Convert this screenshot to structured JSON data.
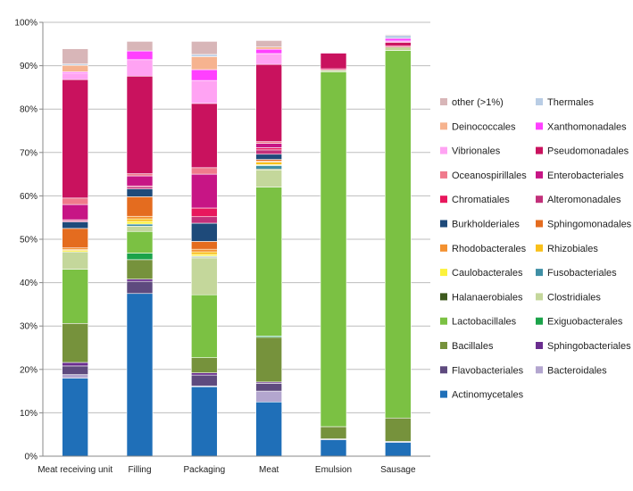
{
  "chart_data": {
    "type": "bar",
    "stacked": true,
    "categories": [
      "Meat receiving unit",
      "Filling",
      "Packaging",
      "Meat",
      "Emulsion",
      "Sausage"
    ],
    "ylim": [
      0,
      100
    ],
    "yticks": [
      "0%",
      "10%",
      "20%",
      "30%",
      "40%",
      "50%",
      "60%",
      "70%",
      "80%",
      "90%",
      "100%"
    ],
    "grid": true,
    "legend_position": "right",
    "series": [
      {
        "name": "Actinomycetales",
        "color": "#1f6fb8",
        "values": [
          18,
          37.5,
          16,
          12.5,
          3.8,
          3.2
        ]
      },
      {
        "name": "Bacteroidales",
        "color": "#b3a6cf",
        "values": [
          0.8,
          0,
          0.2,
          2.5,
          0.2,
          0.2
        ]
      },
      {
        "name": "Flavobacteriales",
        "color": "#5e4a7e",
        "values": [
          2,
          2.8,
          2.5,
          1.8,
          0,
          0
        ]
      },
      {
        "name": "Sphingobacteriales",
        "color": "#6a2d8f",
        "values": [
          0.8,
          0.5,
          0.5,
          0.3,
          0,
          0
        ]
      },
      {
        "name": "Bacillales",
        "color": "#76923c",
        "values": [
          9,
          4.5,
          3.5,
          10.3,
          2.8,
          5.4
        ]
      },
      {
        "name": "Exiguobacterales",
        "color": "#1ba34a",
        "values": [
          0,
          1.5,
          0,
          0.3,
          0,
          0
        ]
      },
      {
        "name": "Lactobacillales",
        "color": "#7bc143",
        "values": [
          12.5,
          5,
          14.5,
          34.3,
          81.8,
          84.7
        ]
      },
      {
        "name": "Clostridiales",
        "color": "#c4d79b",
        "values": [
          4,
          1.2,
          8.5,
          4,
          0.4,
          0.8
        ]
      },
      {
        "name": "Halanaerobiales",
        "color": "#3d5a1e",
        "values": [
          0,
          0,
          0.2,
          0.2,
          0,
          0
        ]
      },
      {
        "name": "Fusobacteriales",
        "color": "#3f8fa5",
        "values": [
          0,
          0.5,
          0.2,
          0.8,
          0,
          0
        ]
      },
      {
        "name": "Caulobacterales",
        "color": "#fcf23c",
        "values": [
          0.3,
          0.6,
          0.4,
          0.2,
          0,
          0
        ]
      },
      {
        "name": "Rhizobiales",
        "color": "#f9c01a",
        "values": [
          0.2,
          0.6,
          0.6,
          0.6,
          0,
          0
        ]
      },
      {
        "name": "Rhodobacterales",
        "color": "#f39130",
        "values": [
          0.4,
          0.6,
          0.6,
          0.2,
          0,
          0
        ]
      },
      {
        "name": "Sphingomonadales",
        "color": "#e46c1f",
        "values": [
          4.5,
          4.5,
          1.8,
          0.4,
          0,
          0
        ]
      },
      {
        "name": "Burkholderiales",
        "color": "#1e4a7a",
        "values": [
          1.5,
          1.8,
          4.2,
          1.2,
          0,
          0
        ]
      },
      {
        "name": "Alteromonadales",
        "color": "#c2307a",
        "values": [
          0.3,
          0.5,
          1.5,
          1,
          0,
          0
        ]
      },
      {
        "name": "Chromatiales",
        "color": "#e8175d",
        "values": [
          0.2,
          0.2,
          2,
          0.5,
          0.3,
          0.3
        ]
      },
      {
        "name": "Enterobacteriales",
        "color": "#c71585",
        "values": [
          3.5,
          2.3,
          7.8,
          1,
          0,
          0
        ]
      },
      {
        "name": "Oceanospirillales",
        "color": "#f07a8c",
        "values": [
          1.5,
          0.5,
          1.5,
          0.4,
          0,
          0
        ]
      },
      {
        "name": "Pseudomonadales",
        "color": "#c9125e",
        "values": [
          27.3,
          22.5,
          14.8,
          17.8,
          3.6,
          0.8
        ]
      },
      {
        "name": "Vibrionales",
        "color": "#ffa3f3",
        "values": [
          1.5,
          3.8,
          5.3,
          2.5,
          0.2,
          0.3
        ]
      },
      {
        "name": "Xanthomonadales",
        "color": "#ff40ff",
        "values": [
          0.3,
          2,
          2.5,
          1,
          0,
          0.6
        ]
      },
      {
        "name": "Deinococcales",
        "color": "#f6b38f",
        "values": [
          1.5,
          0,
          3,
          0.5,
          0,
          0
        ]
      },
      {
        "name": "Thermales",
        "color": "#b9cde5",
        "values": [
          0.3,
          0,
          0.5,
          0,
          0,
          0.7
        ]
      },
      {
        "name": "other (>1%)",
        "color": "#d8b6b8",
        "values": [
          3.5,
          2.2,
          3,
          1.5,
          0.1,
          0.2
        ]
      }
    ]
  }
}
